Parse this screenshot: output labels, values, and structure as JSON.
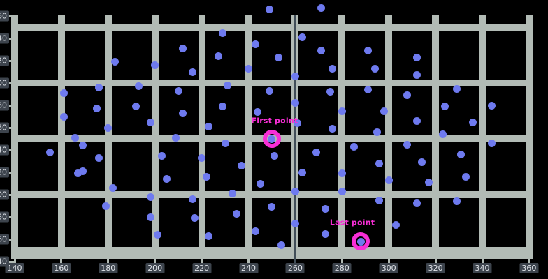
{
  "figure": {
    "background": "#000000"
  },
  "colors": {
    "grid": "#b2bbb5",
    "point": "#6e7aef",
    "accent_pink": "#f82ed6",
    "vline": "#414e58",
    "tick_box_bg": "#3d444d",
    "tick_text": "#e0e4e9"
  },
  "chart_data": {
    "type": "scatter",
    "title": "",
    "xlabel": "",
    "ylabel": "",
    "xlim": [
      140,
      360
    ],
    "ylim": [
      140,
      360
    ],
    "x_ticks": [
      140,
      160,
      180,
      200,
      220,
      240,
      260,
      280,
      300,
      320,
      340,
      360
    ],
    "y_ticks": [
      140,
      160,
      180,
      200,
      220,
      240,
      260,
      280,
      300,
      320,
      340,
      360
    ],
    "x_gridlines": [
      140,
      160,
      180,
      200,
      220,
      240,
      260,
      280,
      300,
      320,
      340,
      360
    ],
    "y_gridlines": [
      150,
      200,
      250,
      300,
      350
    ],
    "vline_x": 260,
    "grid_on": true,
    "legend": null,
    "series": [
      {
        "name": "scatter-points",
        "color": "#6e7aef",
        "points": [
          [
            183,
            319
          ],
          [
            200,
            316
          ],
          [
            212,
            331
          ],
          [
            176,
            296
          ],
          [
            193,
            297
          ],
          [
            210,
            293
          ],
          [
            161,
            291
          ],
          [
            175,
            277
          ],
          [
            192,
            279
          ],
          [
            212,
            273
          ],
          [
            161,
            270
          ],
          [
            198,
            265
          ],
          [
            180,
            260
          ],
          [
            229,
            345
          ],
          [
            263,
            341
          ],
          [
            243,
            335
          ],
          [
            271,
            329
          ],
          [
            227,
            324
          ],
          [
            253,
            323
          ],
          [
            276,
            313
          ],
          [
            240,
            313
          ],
          [
            216,
            310
          ],
          [
            260,
            306
          ],
          [
            231,
            298
          ],
          [
            249,
            293
          ],
          [
            275,
            292
          ],
          [
            229,
            279
          ],
          [
            260,
            282
          ],
          [
            280,
            275
          ],
          [
            244,
            274
          ],
          [
            223,
            261
          ],
          [
            261,
            264
          ],
          [
            276,
            259
          ],
          [
            249,
            366
          ],
          [
            271,
            367
          ],
          [
            291,
            329
          ],
          [
            312,
            323
          ],
          [
            294,
            313
          ],
          [
            312,
            307
          ],
          [
            291,
            294
          ],
          [
            329,
            295
          ],
          [
            308,
            289
          ],
          [
            324,
            279
          ],
          [
            344,
            280
          ],
          [
            298,
            275
          ],
          [
            312,
            266
          ],
          [
            336,
            265
          ],
          [
            295,
            256
          ],
          [
            323,
            254
          ],
          [
            166,
            251
          ],
          [
            209,
            251
          ],
          [
            169,
            244
          ],
          [
            155,
            238
          ],
          [
            176,
            233
          ],
          [
            203,
            235
          ],
          [
            167,
            219
          ],
          [
            169,
            221
          ],
          [
            205,
            214
          ],
          [
            182,
            206
          ],
          [
            198,
            198
          ],
          [
            179,
            190
          ],
          [
            198,
            180
          ],
          [
            201,
            164
          ],
          [
            230,
            246
          ],
          [
            220,
            233
          ],
          [
            285,
            243
          ],
          [
            269,
            238
          ],
          [
            251,
            235
          ],
          [
            237,
            226
          ],
          [
            263,
            220
          ],
          [
            222,
            216
          ],
          [
            280,
            219
          ],
          [
            245,
            210
          ],
          [
            233,
            201
          ],
          [
            260,
            203
          ],
          [
            280,
            203
          ],
          [
            216,
            196
          ],
          [
            250,
            189
          ],
          [
            273,
            187
          ],
          [
            217,
            179
          ],
          [
            235,
            183
          ],
          [
            260,
            174
          ],
          [
            243,
            167
          ],
          [
            273,
            165
          ],
          [
            223,
            163
          ],
          [
            254,
            155
          ],
          [
            308,
            245
          ],
          [
            344,
            246
          ],
          [
            331,
            236
          ],
          [
            296,
            228
          ],
          [
            314,
            229
          ],
          [
            333,
            216
          ],
          [
            300,
            213
          ],
          [
            317,
            211
          ],
          [
            296,
            195
          ],
          [
            312,
            192
          ],
          [
            329,
            194
          ],
          [
            303,
            173
          ]
        ]
      }
    ],
    "annotations": [
      {
        "text": "First point",
        "x": 250,
        "y": 250,
        "label_offset": [
          4,
          -26
        ]
      },
      {
        "text": "Last point",
        "x": 288,
        "y": 158,
        "label_offset": [
          -12,
          -27
        ]
      }
    ]
  }
}
